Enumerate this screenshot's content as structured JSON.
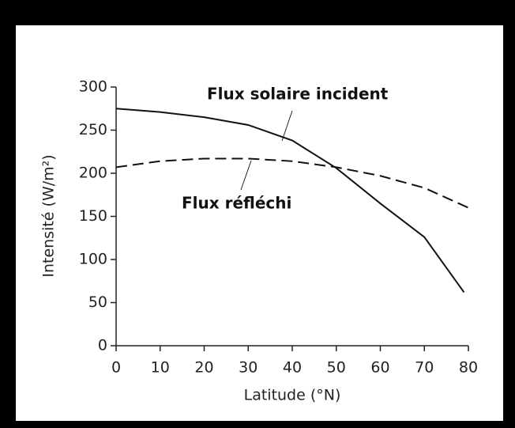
{
  "chart_data": {
    "type": "line",
    "xlabel": "Latitude (°N)",
    "ylabel": "Intensité (W/m²)",
    "xlim": [
      0,
      80
    ],
    "xticks": [
      0,
      10,
      20,
      30,
      40,
      50,
      60,
      70,
      80
    ],
    "ylim": [
      0,
      300
    ],
    "yticks": [
      0,
      50,
      100,
      150,
      200,
      250,
      300
    ],
    "series": [
      {
        "name": "Flux solaire incident",
        "color": "#111111",
        "dash": false,
        "x": [
          0,
          10,
          20,
          30,
          40,
          50,
          60,
          70,
          79
        ],
        "values": [
          275,
          271,
          265,
          256,
          238,
          206,
          165,
          126,
          62
        ]
      },
      {
        "name": "Flux réfléchi",
        "color": "#111111",
        "dash": true,
        "x": [
          0,
          10,
          20,
          30,
          40,
          50,
          60,
          70,
          80
        ],
        "values": [
          207,
          214,
          217,
          217,
          214,
          207,
          197,
          183,
          160
        ]
      }
    ]
  }
}
